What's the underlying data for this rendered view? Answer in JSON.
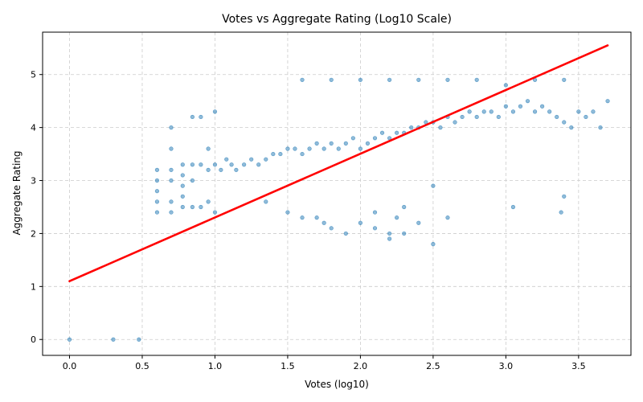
{
  "chart_data": {
    "type": "scatter",
    "title": "Votes vs Aggregate Rating (Log10 Scale)",
    "xlabel": "Votes (log10)",
    "ylabel": "Aggregate Rating",
    "xlim": [
      -0.185,
      3.86
    ],
    "ylim": [
      -0.3,
      5.8
    ],
    "xticks": [
      0.0,
      0.5,
      1.0,
      1.5,
      2.0,
      2.5,
      3.0,
      3.5
    ],
    "xtick_labels": [
      "0.0",
      "0.5",
      "1.0",
      "1.5",
      "2.0",
      "2.5",
      "3.0",
      "3.5"
    ],
    "yticks": [
      0,
      1,
      2,
      3,
      4,
      5
    ],
    "ytick_labels": [
      "0",
      "1",
      "2",
      "3",
      "4",
      "5"
    ],
    "grid": true,
    "grid_style": "dashed",
    "point_color": "#1f77b4",
    "line_color": "#ff0000",
    "series": [
      {
        "kind": "points",
        "x": [
          0.0,
          0.301,
          0.477,
          0.602,
          0.602,
          0.602,
          0.602,
          0.602,
          0.699,
          0.699,
          0.699,
          0.699,
          0.699,
          0.699,
          0.778,
          0.778,
          0.778,
          0.778,
          0.778,
          0.845,
          0.845,
          0.845,
          0.845,
          0.903,
          0.903,
          0.903,
          0.954,
          0.954,
          0.954,
          1.0,
          1.0,
          1.0,
          1.041,
          1.079,
          1.114,
          1.146,
          1.2,
          1.25,
          1.3,
          1.35,
          1.4,
          1.45,
          1.5,
          1.55,
          1.6,
          1.65,
          1.7,
          1.75,
          1.8,
          1.85,
          1.9,
          1.95,
          2.0,
          2.05,
          2.1,
          2.15,
          2.2,
          2.25,
          2.3,
          2.35,
          2.4,
          2.45,
          2.5,
          2.55,
          2.6,
          2.65,
          2.7,
          2.75,
          2.8,
          2.85,
          2.9,
          2.95,
          3.0,
          3.05,
          3.1,
          3.15,
          3.2,
          3.25,
          3.3,
          3.35,
          3.4,
          3.45,
          3.5,
          3.55,
          3.6,
          3.65,
          3.7,
          1.35,
          1.5,
          1.6,
          1.7,
          1.75,
          1.8,
          1.9,
          2.0,
          2.1,
          2.2,
          2.25,
          2.3,
          2.4,
          2.5,
          2.6,
          1.6,
          1.8,
          2.0,
          2.2,
          2.4,
          2.6,
          2.8,
          3.0,
          3.2,
          3.4,
          2.5,
          3.05,
          3.38,
          3.4,
          2.2,
          2.3,
          2.1
        ],
        "y": [
          0.0,
          0.0,
          0.0,
          3.2,
          3.0,
          2.8,
          2.6,
          2.4,
          4.0,
          3.6,
          3.2,
          3.0,
          2.6,
          2.4,
          3.3,
          3.1,
          2.9,
          2.7,
          2.5,
          4.2,
          3.3,
          3.0,
          2.5,
          4.2,
          3.3,
          2.5,
          3.6,
          3.2,
          2.6,
          4.3,
          3.3,
          2.4,
          3.2,
          3.4,
          3.3,
          3.2,
          3.3,
          3.4,
          3.3,
          3.4,
          3.5,
          3.5,
          3.6,
          3.6,
          3.5,
          3.6,
          3.7,
          3.6,
          3.7,
          3.6,
          3.7,
          3.8,
          3.6,
          3.7,
          3.8,
          3.9,
          3.8,
          3.9,
          3.9,
          4.0,
          4.0,
          4.1,
          4.1,
          4.0,
          4.2,
          4.1,
          4.2,
          4.3,
          4.2,
          4.3,
          4.3,
          4.2,
          4.4,
          4.3,
          4.4,
          4.5,
          4.3,
          4.4,
          4.3,
          4.2,
          4.1,
          4.0,
          4.3,
          4.2,
          4.3,
          4.0,
          4.5,
          2.6,
          2.4,
          2.3,
          2.3,
          2.2,
          2.1,
          2.0,
          2.2,
          2.1,
          1.9,
          2.3,
          2.0,
          2.2,
          1.8,
          2.3,
          4.9,
          4.9,
          4.9,
          4.9,
          4.9,
          4.9,
          4.9,
          4.8,
          4.9,
          4.9,
          2.9,
          2.5,
          2.4,
          2.7,
          2.0,
          2.5,
          2.4
        ]
      },
      {
        "kind": "regression-line",
        "x": [
          0.0,
          3.7
        ],
        "y": [
          1.1,
          5.55
        ]
      }
    ]
  }
}
